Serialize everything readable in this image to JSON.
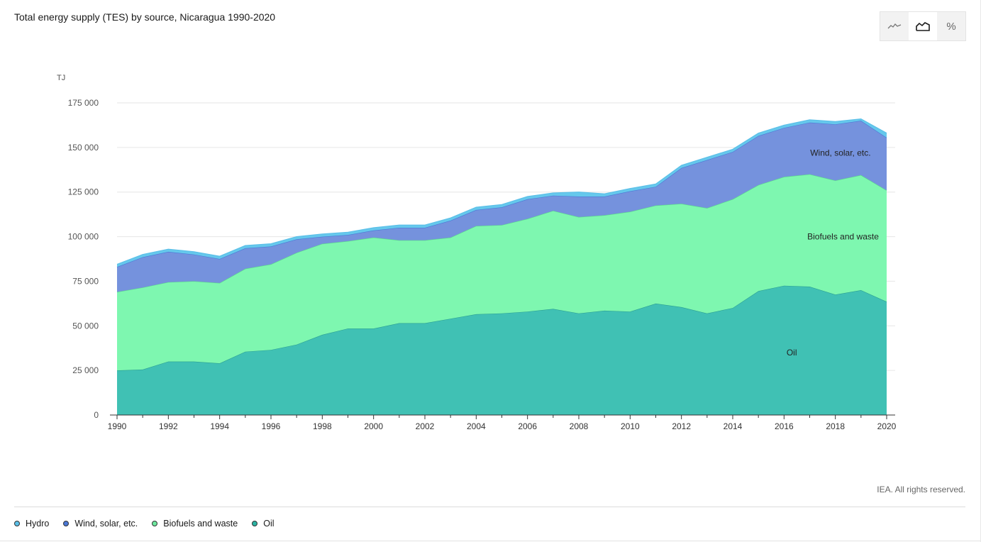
{
  "title": "Total energy supply (TES) by source, Nicaragua 1990-2020",
  "toolbar": {
    "buttons": [
      {
        "name": "line-chart-button",
        "icon": "line-chart-icon",
        "active": false
      },
      {
        "name": "area-chart-button",
        "icon": "area-chart-icon",
        "active": true
      },
      {
        "name": "percent-button",
        "icon": "percent-icon",
        "label": "%",
        "active": false
      }
    ]
  },
  "credit": "IEA. All rights reserved.",
  "legend": [
    {
      "label": "Hydro",
      "color": "#5bc0e8"
    },
    {
      "label": "Wind, solar, etc.",
      "color": "#4a78d6"
    },
    {
      "label": "Biofuels and waste",
      "color": "#6ee79e"
    },
    {
      "label": "Oil",
      "color": "#2bb3a3"
    }
  ],
  "chart_data": {
    "type": "area",
    "stacked": true,
    "title": "Total energy supply (TES) by source, Nicaragua 1990-2020",
    "ylabel": "TJ",
    "ylim": [
      0,
      175000
    ],
    "yticks": [
      0,
      25000,
      50000,
      75000,
      100000,
      125000,
      150000,
      175000
    ],
    "ytick_labels": [
      "0",
      "25 000",
      "50 000",
      "75 000",
      "100 000",
      "125 000",
      "150 000",
      "175 000"
    ],
    "xtick_labels": [
      "1990",
      "1992",
      "1994",
      "1996",
      "1998",
      "2000",
      "2002",
      "2004",
      "2006",
      "2008",
      "2010",
      "2012",
      "2014",
      "2016",
      "2018",
      "2020"
    ],
    "x": [
      1990,
      1991,
      1992,
      1993,
      1994,
      1995,
      1996,
      1997,
      1998,
      1999,
      2000,
      2001,
      2002,
      2003,
      2004,
      2005,
      2006,
      2007,
      2008,
      2009,
      2010,
      2011,
      2012,
      2013,
      2014,
      2015,
      2016,
      2017,
      2018,
      2019,
      2020
    ],
    "grid": true,
    "series": [
      {
        "name": "Oil",
        "color": "#2bb3a3",
        "fill": "#40c1b4",
        "values": [
          25000,
          25500,
          30000,
          30000,
          29000,
          35500,
          36500,
          39500,
          45000,
          48500,
          48500,
          51500,
          51500,
          54000,
          56500,
          57000,
          58000,
          59500,
          57000,
          58500,
          58000,
          62500,
          60500,
          57000,
          60000,
          69500,
          72500,
          72000,
          67500,
          70000,
          63500
        ]
      },
      {
        "name": "Biofuels and waste",
        "color": "#6ee79e",
        "fill": "#7ef7b0",
        "values": [
          44000,
          46000,
          44500,
          45000,
          45000,
          46500,
          48000,
          51500,
          51000,
          49000,
          51000,
          46500,
          46500,
          45500,
          49500,
          49500,
          52000,
          55000,
          54000,
          53500,
          56000,
          55000,
          58000,
          59000,
          61000,
          59500,
          61000,
          63000,
          64000,
          64500,
          62500
        ]
      },
      {
        "name": "Wind, solar, etc.",
        "color": "#4a78d6",
        "fill": "#7592dd",
        "values": [
          14000,
          17000,
          17000,
          15000,
          13500,
          11500,
          10000,
          7500,
          4000,
          3500,
          4000,
          7000,
          7000,
          9500,
          9000,
          10000,
          11000,
          8500,
          11500,
          10500,
          11500,
          10500,
          20000,
          27000,
          26500,
          27500,
          27500,
          29000,
          31500,
          30500,
          29500
        ]
      },
      {
        "name": "Hydro",
        "color": "#5bc0e8",
        "fill": "#66c8ec",
        "values": [
          1500,
          1500,
          1500,
          1500,
          1500,
          1500,
          1500,
          1500,
          1500,
          1500,
          1500,
          1500,
          1500,
          1500,
          1500,
          1500,
          1500,
          1500,
          2500,
          1500,
          1500,
          1500,
          1500,
          1500,
          1500,
          1500,
          1500,
          1500,
          1500,
          1000,
          2500
        ]
      }
    ],
    "annotations": [
      {
        "text": "Wind, solar, etc.",
        "x": 2018.2,
        "y": 147000
      },
      {
        "text": "Biofuels and waste",
        "x": 2018.3,
        "y": 100000
      },
      {
        "text": "Oil",
        "x": 2016.3,
        "y": 35000
      }
    ]
  }
}
